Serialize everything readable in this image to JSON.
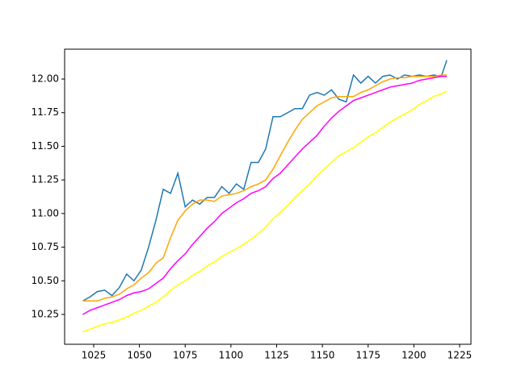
{
  "chart_data": {
    "type": "line",
    "x": [
      1019,
      1023,
      1027,
      1031,
      1035,
      1039,
      1043,
      1047,
      1051,
      1055,
      1059,
      1063,
      1067,
      1071,
      1075,
      1079,
      1083,
      1087,
      1091,
      1095,
      1099,
      1103,
      1107,
      1111,
      1115,
      1119,
      1123,
      1127,
      1131,
      1135,
      1139,
      1143,
      1147,
      1151,
      1155,
      1159,
      1163,
      1167,
      1171,
      1175,
      1179,
      1183,
      1187,
      1191,
      1195,
      1199,
      1203,
      1207,
      1211,
      1215,
      1218
    ],
    "series": [
      {
        "color": "#1f77b4",
        "values": [
          10.35,
          10.38,
          10.42,
          10.43,
          10.39,
          10.45,
          10.55,
          10.5,
          10.58,
          10.75,
          10.95,
          11.18,
          11.15,
          11.3,
          11.05,
          11.1,
          11.07,
          11.12,
          11.12,
          11.2,
          11.15,
          11.22,
          11.18,
          11.38,
          11.38,
          11.48,
          11.72,
          11.72,
          11.75,
          11.78,
          11.78,
          11.88,
          11.9,
          11.88,
          11.92,
          11.85,
          11.83,
          12.03,
          11.97,
          12.02,
          11.97,
          12.02,
          12.03,
          12.0,
          12.03,
          12.02,
          12.03,
          12.02,
          12.03,
          12.02,
          12.14
        ]
      },
      {
        "color": "#ffa500",
        "values": [
          10.35,
          10.35,
          10.35,
          10.37,
          10.38,
          10.4,
          10.44,
          10.47,
          10.52,
          10.56,
          10.63,
          10.67,
          10.82,
          10.95,
          11.02,
          11.07,
          11.1,
          11.1,
          11.09,
          11.13,
          11.14,
          11.15,
          11.17,
          11.2,
          11.22,
          11.25,
          11.33,
          11.43,
          11.53,
          11.62,
          11.7,
          11.75,
          11.8,
          11.83,
          11.86,
          11.87,
          11.87,
          11.87,
          11.9,
          11.92,
          11.95,
          11.98,
          12.0,
          12.01,
          12.01,
          12.02,
          12.02,
          12.02,
          12.02,
          12.03,
          12.03
        ]
      },
      {
        "color": "#ff00ff",
        "values": [
          10.25,
          10.28,
          10.3,
          10.32,
          10.34,
          10.36,
          10.39,
          10.41,
          10.42,
          10.44,
          10.48,
          10.52,
          10.59,
          10.65,
          10.7,
          10.77,
          10.83,
          10.89,
          10.94,
          11.0,
          11.04,
          11.08,
          11.11,
          11.15,
          11.17,
          11.2,
          11.26,
          11.3,
          11.36,
          11.42,
          11.48,
          11.53,
          11.58,
          11.65,
          11.71,
          11.76,
          11.8,
          11.84,
          11.86,
          11.88,
          11.9,
          11.92,
          11.94,
          11.95,
          11.96,
          11.97,
          11.99,
          12.0,
          12.01,
          12.02,
          12.02
        ]
      },
      {
        "color": "#ffff00",
        "values": [
          10.12,
          10.14,
          10.16,
          10.18,
          10.19,
          10.21,
          10.23,
          10.26,
          10.28,
          10.31,
          10.34,
          10.38,
          10.43,
          10.47,
          10.5,
          10.54,
          10.57,
          10.61,
          10.64,
          10.68,
          10.71,
          10.74,
          10.77,
          10.81,
          10.85,
          10.9,
          10.96,
          11.01,
          11.06,
          11.12,
          11.17,
          11.22,
          11.28,
          11.33,
          11.38,
          11.43,
          11.46,
          11.49,
          11.53,
          11.57,
          11.6,
          11.64,
          11.68,
          11.71,
          11.74,
          11.77,
          11.81,
          11.84,
          11.87,
          11.89,
          11.91
        ]
      }
    ],
    "xlim": [
      1009.1,
      1231.2
    ],
    "xticks": [
      1025,
      1050,
      1075,
      1100,
      1125,
      1150,
      1175,
      1200,
      1225
    ],
    "ylim": [
      10.028,
      12.222
    ],
    "yticks": [
      10.25,
      {
        "value": 10.5,
        "label": "10.50"
      },
      10.75,
      {
        "value": 11,
        "label": "11.00"
      },
      11.25,
      {
        "value": 11.5,
        "label": "11.50"
      },
      11.75,
      {
        "value": 12,
        "label": "12.00"
      }
    ],
    "grid": false
  }
}
